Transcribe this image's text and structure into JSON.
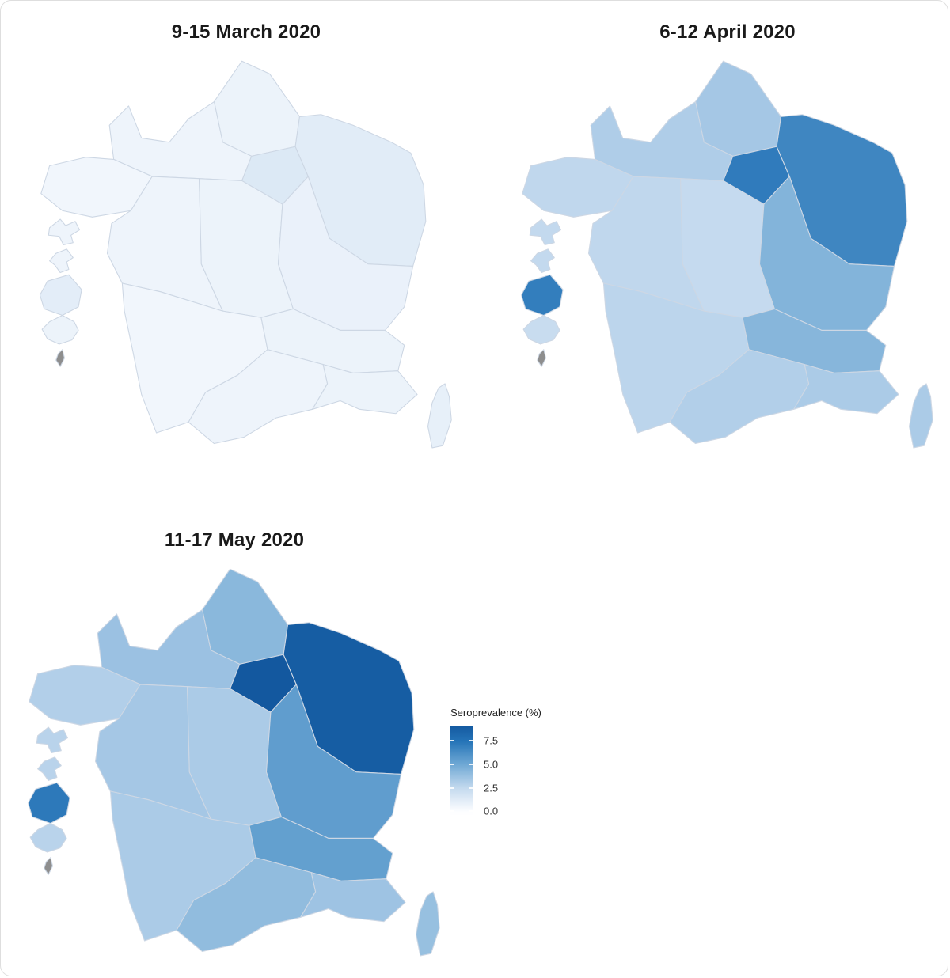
{
  "figure": {
    "background": "#ffffff",
    "card_border": "#dedede",
    "title_color": "#1a1a1a"
  },
  "panels": [
    {
      "title": "9-15 March 2020"
    },
    {
      "title": "6-12 April 2020"
    },
    {
      "title": "11-17 May 2020"
    }
  ],
  "legend": {
    "title": "Seroprevalence (%)",
    "ticks": [
      {
        "label": "7.5",
        "value": 7.5
      },
      {
        "label": "5.0",
        "value": 5.0
      },
      {
        "label": "2.5",
        "value": 2.5
      },
      {
        "label": "0.0",
        "value": 0.0
      }
    ]
  },
  "color_scale": {
    "stops": [
      [
        0,
        "#FCFDFF"
      ],
      [
        2.5,
        "#C3D9EE"
      ],
      [
        5,
        "#6FA8D4"
      ],
      [
        7.5,
        "#2473B7"
      ],
      [
        10,
        "#0B4B94"
      ]
    ],
    "na_color": "#8E8E8E",
    "region_border": "#CDD7E4"
  },
  "chart_data": {
    "type": "heatmap",
    "subtype": "choropleth-map-of-france",
    "metric": "Seroprevalence (%)",
    "legend_ticks": [
      0.0,
      2.5,
      5.0,
      7.5
    ],
    "legend_position": "right-of-third-map",
    "periods": [
      "9-15 March 2020",
      "6-12 April 2020",
      "11-17 May 2020"
    ],
    "regions": [
      {
        "id": "hauts_de_france",
        "name": "Hauts-de-France"
      },
      {
        "id": "normandie",
        "name": "Normandie"
      },
      {
        "id": "ile_de_france",
        "name": "Île-de-France"
      },
      {
        "id": "grand_est",
        "name": "Grand Est"
      },
      {
        "id": "bretagne",
        "name": "Bretagne"
      },
      {
        "id": "pays_de_la_loire",
        "name": "Pays de la Loire"
      },
      {
        "id": "centre_val_de_loire",
        "name": "Centre-Val de Loire"
      },
      {
        "id": "bourgogne_franche_comte",
        "name": "Bourgogne-Franche-Comté"
      },
      {
        "id": "nouvelle_aquitaine",
        "name": "Nouvelle-Aquitaine"
      },
      {
        "id": "auvergne_rhone_alpes",
        "name": "Auvergne-Rhône-Alpes"
      },
      {
        "id": "occitanie",
        "name": "Occitanie"
      },
      {
        "id": "paca",
        "name": "Provence-Alpes-Côte d'Azur"
      },
      {
        "id": "corse",
        "name": "Corse"
      },
      {
        "id": "guadeloupe",
        "name": "Guadeloupe"
      },
      {
        "id": "martinique",
        "name": "Martinique"
      },
      {
        "id": "guyane",
        "name": "Guyane"
      },
      {
        "id": "reunion",
        "name": "La Réunion"
      },
      {
        "id": "mayotte",
        "name": "Mayotte"
      }
    ],
    "series": [
      {
        "period": "9-15 March 2020",
        "values": {
          "hauts_de_france": 0.7,
          "normandie": 0.6,
          "ile_de_france": 1.4,
          "grand_est": 1.2,
          "bretagne": 0.5,
          "pays_de_la_loire": 0.6,
          "centre_val_de_loire": 0.7,
          "bourgogne_franche_comte": 0.8,
          "nouvelle_aquitaine": 0.5,
          "auvergne_rhone_alpes": 0.7,
          "occitanie": 0.6,
          "paca": 0.7,
          "corse": 0.9,
          "guadeloupe": 0.6,
          "martinique": 0.6,
          "guyane": 1.1,
          "reunion": 0.7,
          "mayotte": null
        }
      },
      {
        "period": "6-12 April 2020",
        "values": {
          "hauts_de_france": 3.4,
          "normandie": 3.1,
          "ile_de_france": 7.1,
          "grand_est": 6.6,
          "bretagne": 2.6,
          "pays_de_la_loire": 2.6,
          "centre_val_de_loire": 2.4,
          "bourgogne_franche_comte": 4.4,
          "nouvelle_aquitaine": 2.7,
          "auvergne_rhone_alpes": 4.3,
          "occitanie": 3.0,
          "paca": 3.2,
          "corse": 3.2,
          "guadeloupe": 2.5,
          "martinique": 2.5,
          "guyane": 7.0,
          "reunion": 2.3,
          "mayotte": null
        }
      },
      {
        "period": "11-17 May 2020",
        "values": {
          "hauts_de_france": 4.2,
          "normandie": 3.7,
          "ile_de_france": 9.2,
          "grand_est": 8.9,
          "bretagne": 3.0,
          "pays_de_la_loire": 3.4,
          "centre_val_de_loire": 3.2,
          "bourgogne_franche_comte": 5.5,
          "nouvelle_aquitaine": 3.2,
          "auvergne_rhone_alpes": 5.4,
          "occitanie": 4.0,
          "paca": 3.6,
          "corse": 3.8,
          "guadeloupe": 2.8,
          "martinique": 2.8,
          "guyane": 7.2,
          "reunion": 2.8,
          "mayotte": null
        }
      }
    ]
  }
}
